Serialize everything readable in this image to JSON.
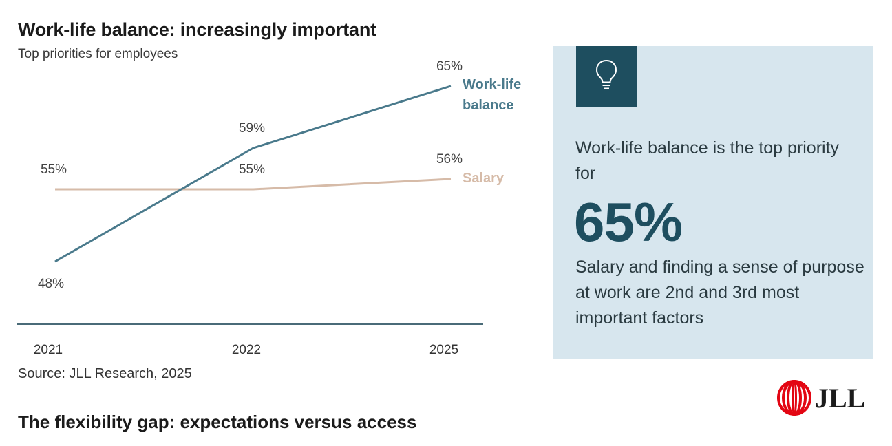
{
  "header": {
    "title": "Work-life balance: increasingly important",
    "subtitle": "Top priorities for employees"
  },
  "source": "Source: JLL Research, 2025",
  "bottom_title": "The flexibility gap: expectations versus access",
  "panel": {
    "icon": "lightbulb-icon",
    "text1": "Work-life balance is the top priority for",
    "big_number": "65%",
    "text2": "Salary and finding a sense of purpose at work are 2nd and 3rd most important factors"
  },
  "logo": {
    "text": "JLL"
  },
  "colors": {
    "work_life": "#4a7a8c",
    "salary": "#d6bba8",
    "panel_bg": "#d7e6ee",
    "icon_bg": "#1e4e5f",
    "logo_red": "#e30613"
  },
  "chart_data": {
    "type": "line",
    "title": "Work-life balance: increasingly important",
    "subtitle": "Top priorities for employees",
    "categories": [
      "2021",
      "2022",
      "2025"
    ],
    "series": [
      {
        "name": "Work-life balance",
        "name_lines": [
          "Work-life",
          "balance"
        ],
        "values": [
          48,
          59,
          65
        ],
        "labels": [
          "48%",
          "59%",
          "65%"
        ],
        "color": "#4a7a8c"
      },
      {
        "name": "Salary",
        "name_lines": [
          "Salary"
        ],
        "values": [
          55,
          55,
          56
        ],
        "labels": [
          "55%",
          "55%",
          "56%"
        ],
        "color": "#d6bba8"
      }
    ],
    "ylim": [
      42,
      68
    ],
    "xlabel": "",
    "ylabel": "",
    "grid": false,
    "legend": "inline-right"
  }
}
